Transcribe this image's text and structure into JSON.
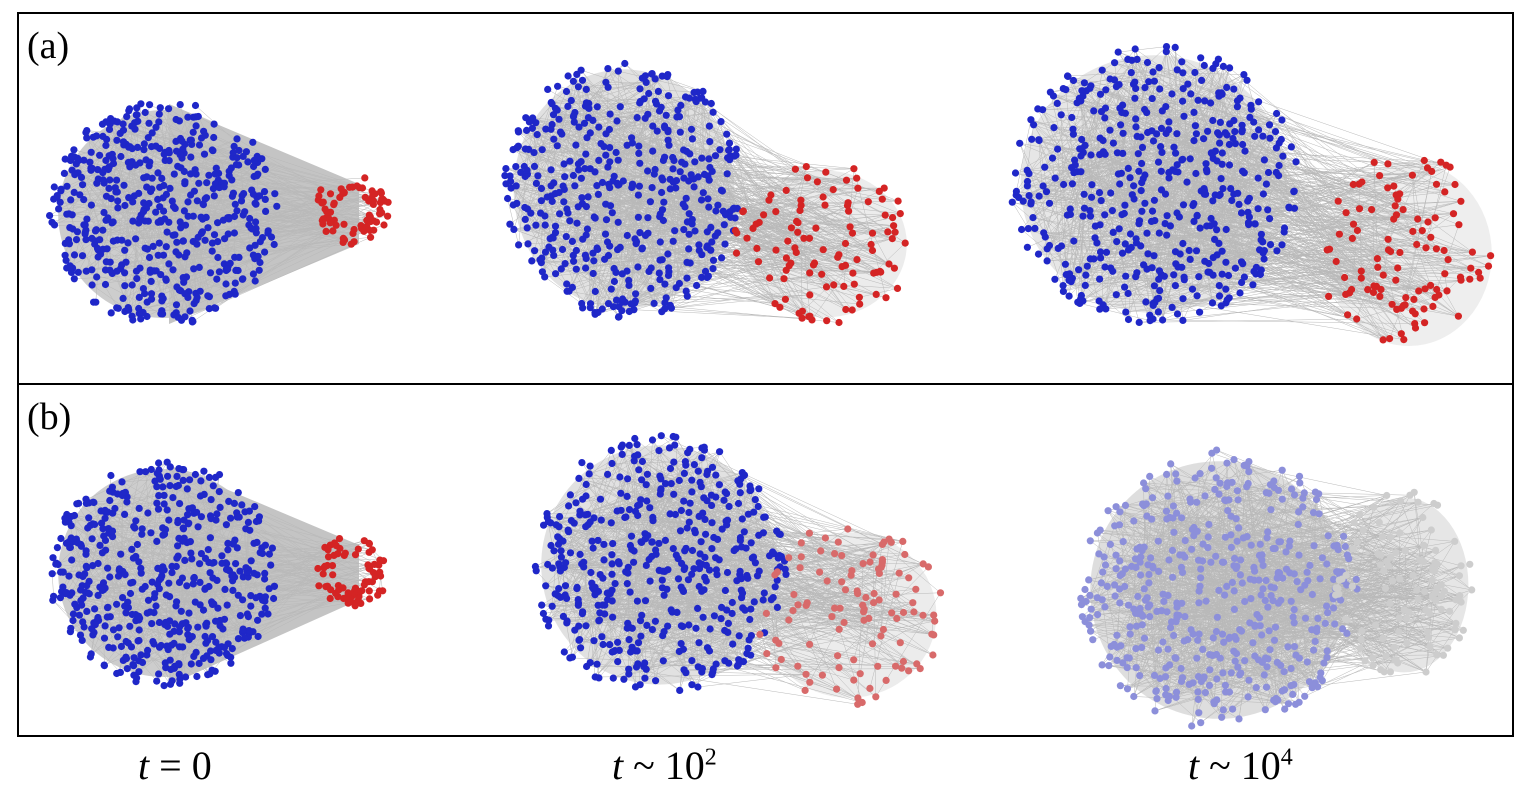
{
  "panels": [
    {
      "id": "a",
      "label": "(a)"
    },
    {
      "id": "b",
      "label": "(b)"
    }
  ],
  "captions": [
    {
      "var": "t",
      "rel": " = ",
      "base": "0",
      "exp": ""
    },
    {
      "var": "t",
      "rel": " ~ ",
      "base": "10",
      "exp": "2"
    },
    {
      "var": "t",
      "rel": " ~ ",
      "base": "10",
      "exp": "4"
    }
  ],
  "colors": {
    "blue": "#1f27c8",
    "red": "#d42424",
    "light_red": "#d86a6a",
    "light_blue": "#8c8fda",
    "grey_node": "#cdcdcd",
    "edge": "#b9b9b9"
  }
}
